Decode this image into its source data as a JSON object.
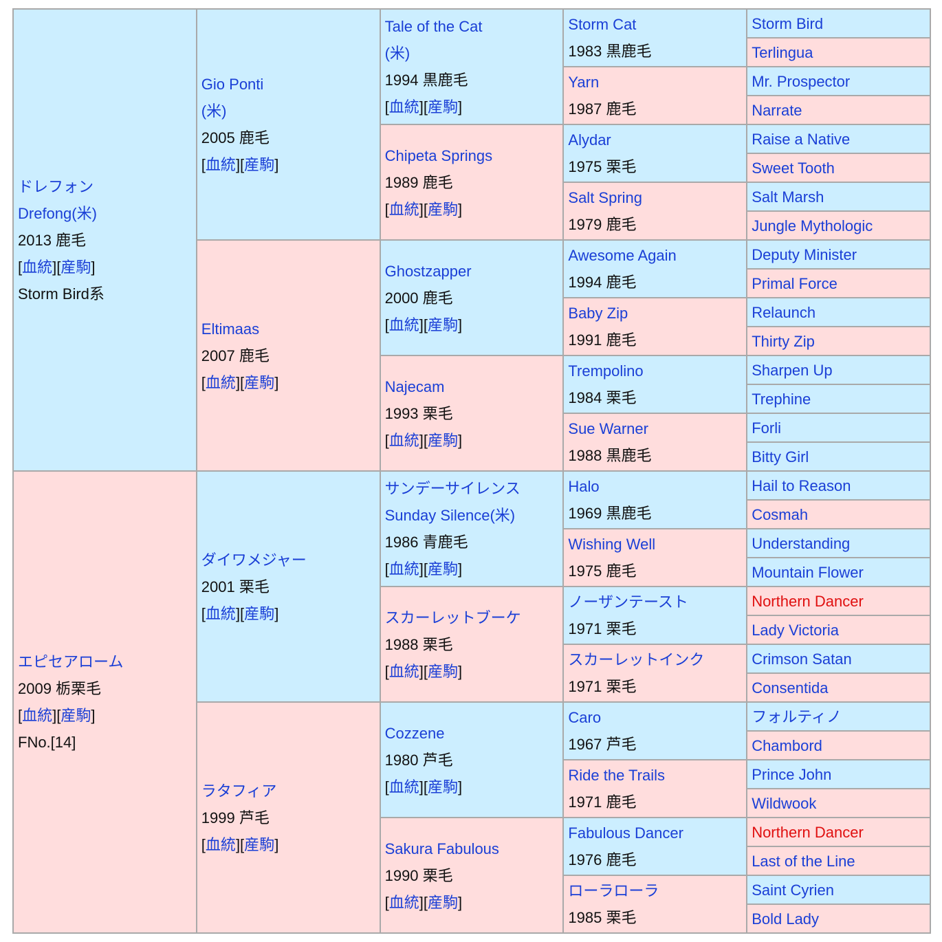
{
  "subject": {
    "sire": {
      "name": "ドレフォン",
      "name2": "Drefong(米)",
      "year_color": "2013 鹿毛",
      "line": "Storm Bird系",
      "sire": {
        "name": "Gio Ponti",
        "name2": "(米)",
        "year_color": "2005 鹿毛",
        "sire": {
          "name": "Tale of the Cat",
          "name2": "(米)",
          "year_color": "1994 黒鹿毛",
          "sire": {
            "name": "Storm Cat",
            "year_color": "1983 黒鹿毛",
            "sire": "Storm Bird",
            "dam": "Terlingua"
          },
          "dam": {
            "name": "Yarn",
            "year_color": "1987 鹿毛",
            "sire": "Mr. Prospector",
            "dam": "Narrate"
          }
        },
        "dam": {
          "name": "Chipeta Springs",
          "year_color": "1989 鹿毛",
          "sire": {
            "name": "Alydar",
            "year_color": "1975 栗毛",
            "sire": "Raise a Native",
            "dam": "Sweet Tooth"
          },
          "dam": {
            "name": "Salt Spring",
            "year_color": "1979 鹿毛",
            "sire": "Salt Marsh",
            "dam": "Jungle Mythologic"
          }
        }
      },
      "dam": {
        "name": "Eltimaas",
        "year_color": "2007 鹿毛",
        "sire": {
          "name": "Ghostzapper",
          "year_color": "2000 鹿毛",
          "sire": {
            "name": "Awesome Again",
            "year_color": "1994 鹿毛",
            "sire": "Deputy Minister",
            "dam": "Primal Force"
          },
          "dam": {
            "name": "Baby Zip",
            "year_color": "1991 鹿毛",
            "sire": "Relaunch",
            "dam": "Thirty Zip"
          }
        },
        "dam": {
          "name": "Najecam",
          "year_color": "1993 栗毛",
          "sire": {
            "name": "Trempolino",
            "year_color": "1984 栗毛",
            "sire": "Sharpen Up",
            "dam": "Trephine"
          },
          "dam": {
            "name": "Sue Warner",
            "year_color": "1988 黒鹿毛",
            "sire": "Forli",
            "dam": "Bitty Girl"
          }
        }
      }
    },
    "dam": {
      "name": "エピセアローム",
      "year_color": "2009 栃栗毛",
      "family": "FNo.[14]",
      "sire": {
        "name": "ダイワメジャー",
        "year_color": "2001 栗毛",
        "sire": {
          "name": "サンデーサイレンス",
          "name2": "Sunday Silence(米)",
          "year_color": "1986 青鹿毛",
          "sire": {
            "name": "Halo",
            "year_color": "1969 黒鹿毛",
            "sire": "Hail to Reason",
            "dam": "Cosmah"
          },
          "dam": {
            "name": "Wishing Well",
            "year_color": "1975 鹿毛",
            "sire": "Understanding",
            "dam": "Mountain Flower"
          }
        },
        "dam": {
          "name": "スカーレットブーケ",
          "year_color": "1988 栗毛",
          "sire": {
            "name": "ノーザンテースト",
            "year_color": "1971 栗毛",
            "sire": "Northern Dancer",
            "dam": "Lady Victoria"
          },
          "dam": {
            "name": "スカーレットインク",
            "year_color": "1971 栗毛",
            "sire": "Crimson Satan",
            "dam": "Consentida"
          }
        }
      },
      "dam": {
        "name": "ラタフィア",
        "year_color": "1999 芦毛",
        "sire": {
          "name": "Cozzene",
          "year_color": "1980 芦毛",
          "sire": {
            "name": "Caro",
            "year_color": "1967 芦毛",
            "sire": "フォルティノ",
            "dam": "Chambord"
          },
          "dam": {
            "name": "Ride the Trails",
            "year_color": "1971 鹿毛",
            "sire": "Prince John",
            "dam": "Wildwook"
          }
        },
        "dam": {
          "name": "Sakura Fabulous",
          "year_color": "1990 栗毛",
          "sire": {
            "name": "Fabulous Dancer",
            "year_color": "1976 鹿毛",
            "sire": "Northern Dancer",
            "dam": "Last of the Line"
          },
          "dam": {
            "name": "ローラローラ",
            "year_color": "1985 栗毛",
            "sire": "Saint Cyrien",
            "dam": "Bold Lady"
          }
        }
      }
    }
  },
  "links": {
    "pedigree": "血統",
    "progeny": "産駒"
  },
  "colors": {
    "male_bg": "#cceeff",
    "female_bg": "#ffdddd",
    "link": "#1a3fd6",
    "inbreeding": "#e01010",
    "border": "#a9a9a9"
  }
}
